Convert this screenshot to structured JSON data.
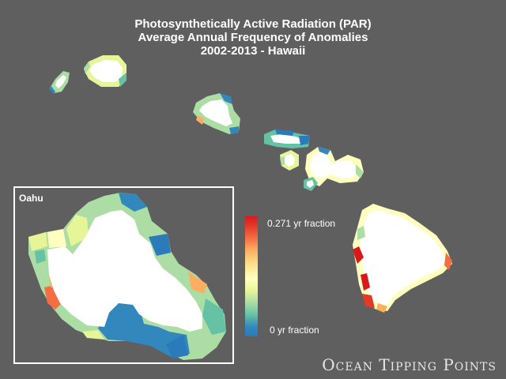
{
  "title": {
    "line1": "Photosynthetically Active Radiation (PAR)",
    "line2": "Average Annual Frequency of Anomalies",
    "line3": "2002-2013 - Hawaii"
  },
  "inset": {
    "label": "Oahu"
  },
  "legend": {
    "max_label": "0.271 yr fraction",
    "min_label": "0 yr fraction",
    "max_value": 0.271,
    "min_value": 0,
    "colors": [
      "#d7191c",
      "#fdae61",
      "#ffffbf",
      "#abdda4",
      "#2b7bba"
    ]
  },
  "credit": "Ocean Tipping Points",
  "islands": [
    "Niihau",
    "Kauai",
    "Oahu",
    "Molokai",
    "Lanai",
    "Maui",
    "Kahoolawe",
    "Hawaii"
  ]
}
